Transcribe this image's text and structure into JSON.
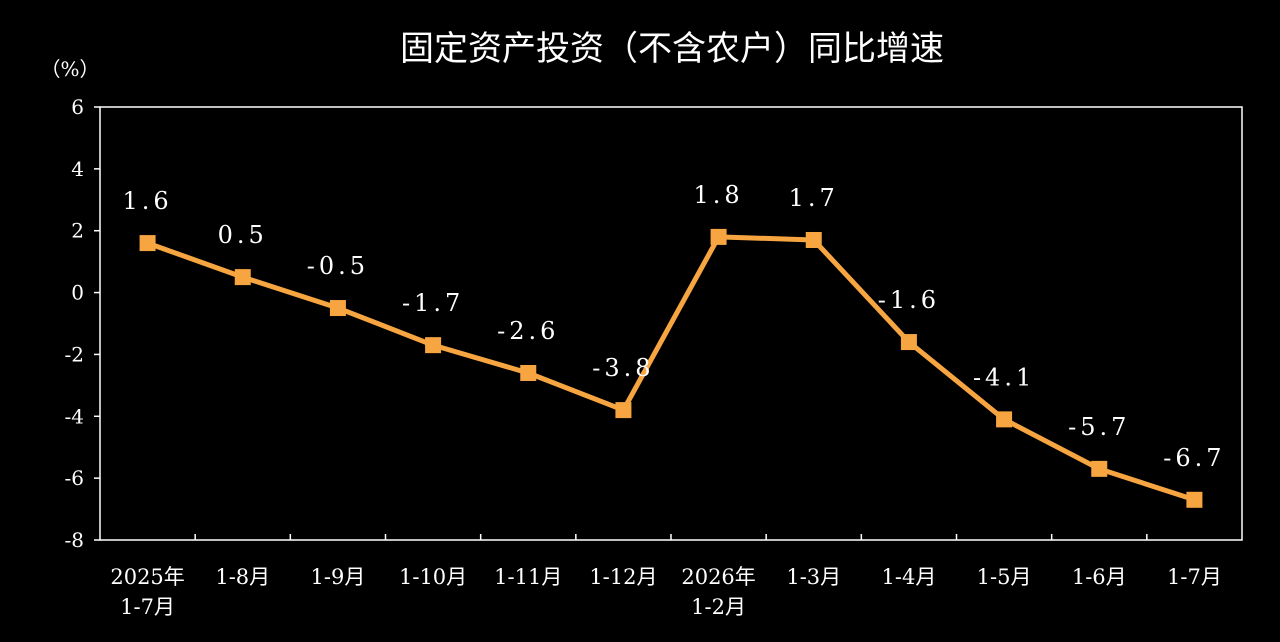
{
  "chart_data": {
    "type": "line",
    "title": "固定资产投资（不含农户）同比增速",
    "unit_label": "（%）",
    "categories": [
      [
        "2025年",
        "1-7月"
      ],
      [
        "1-8月"
      ],
      [
        "1-9月"
      ],
      [
        "1-10月"
      ],
      [
        "1-11月"
      ],
      [
        "1-12月"
      ],
      [
        "2026年",
        "1-2月"
      ],
      [
        "1-3月"
      ],
      [
        "1-4月"
      ],
      [
        "1-5月"
      ],
      [
        "1-6月"
      ],
      [
        "1-7月"
      ]
    ],
    "values": [
      1.6,
      0.5,
      -0.5,
      -1.7,
      -2.6,
      -3.8,
      1.8,
      1.7,
      -1.6,
      -4.1,
      -5.7,
      -6.7
    ],
    "data_labels": [
      "1.6",
      "0.5",
      "-0.5",
      "-1.7",
      "-2.6",
      "-3.8",
      "1.8",
      "1.7",
      "-1.6",
      "-4.1",
      "-5.7",
      "-6.7"
    ],
    "y_ticks": [
      "6",
      "4",
      "2",
      "0",
      "-2",
      "-4",
      "-6",
      "-8"
    ],
    "ylim": [
      -8,
      6
    ],
    "grid": false,
    "legend": "none",
    "colors": {
      "background": "#000000",
      "line": "#F7A541",
      "axis": "#FFFFFF",
      "text": "#FFFFFF"
    }
  }
}
